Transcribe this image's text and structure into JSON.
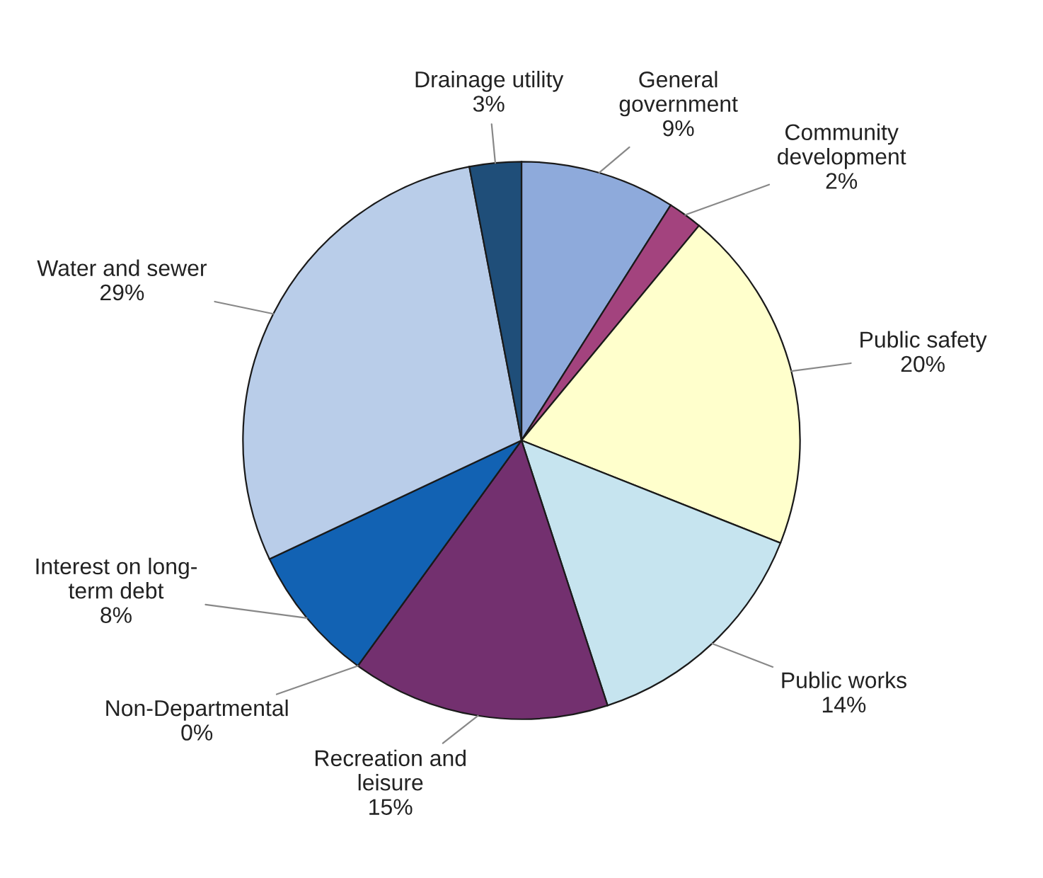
{
  "chart_data": {
    "type": "pie",
    "categories": [
      "General\ngovernment",
      "Community\ndevelopment",
      "Public safety",
      "Public works",
      "Recreation and\nleisure",
      "Non-Departmental",
      "Interest on long-\nterm debt",
      "Water and sewer",
      "Drainage utility"
    ],
    "values": [
      9,
      2,
      20,
      14,
      15,
      0,
      8,
      29,
      3
    ],
    "value_labels": [
      "9%",
      "2%",
      "20%",
      "14%",
      "15%",
      "0%",
      "8%",
      "29%",
      "3%"
    ],
    "colors": [
      "#8eaadb",
      "#a3437e",
      "#ffffcc",
      "#c6e4ef",
      "#73306f",
      "#1b2f4a",
      "#1262b3",
      "#b9cde9",
      "#1f4e79"
    ]
  }
}
